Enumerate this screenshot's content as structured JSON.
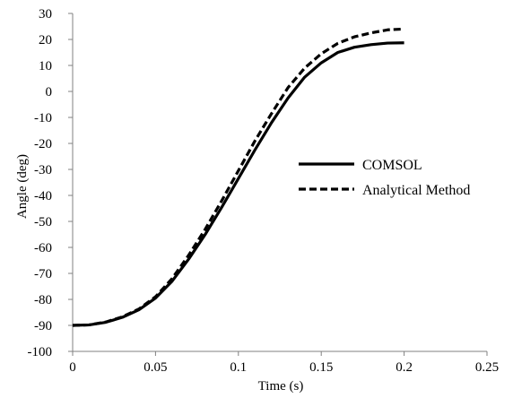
{
  "chart_data": {
    "type": "line",
    "title": "",
    "xlabel": "Time (s)",
    "ylabel": "Angle (deg)",
    "xlim": [
      0,
      0.25
    ],
    "ylim": [
      -100,
      30
    ],
    "x_ticks": [
      "0",
      "0.05",
      "0.1",
      "0.15",
      "0.2",
      "0.25"
    ],
    "y_ticks": [
      "30",
      "20",
      "10",
      "0",
      "-10",
      "-20",
      "-30",
      "-40",
      "-50",
      "-60",
      "-70",
      "-80",
      "-90",
      "-100"
    ],
    "grid": false,
    "legend_position": "right",
    "series": [
      {
        "name": "COMSOL",
        "style": "solid",
        "color": "#000000",
        "x": [
          0,
          0.01,
          0.02,
          0.03,
          0.04,
          0.05,
          0.06,
          0.07,
          0.08,
          0.09,
          0.1,
          0.11,
          0.12,
          0.13,
          0.14,
          0.15,
          0.16,
          0.17,
          0.18,
          0.19,
          0.2
        ],
        "y": [
          -90,
          -89.8,
          -88.8,
          -86.9,
          -84.0,
          -79.5,
          -73.0,
          -64.5,
          -55.0,
          -44.5,
          -33.5,
          -22.5,
          -12.0,
          -2.5,
          5.5,
          11.0,
          15.0,
          17.0,
          18.0,
          18.6,
          18.7
        ]
      },
      {
        "name": "Analytical Method",
        "style": "dashed",
        "color": "#000000",
        "x": [
          0,
          0.01,
          0.02,
          0.03,
          0.04,
          0.05,
          0.06,
          0.07,
          0.08,
          0.09,
          0.1,
          0.11,
          0.12,
          0.13,
          0.14,
          0.15,
          0.16,
          0.17,
          0.18,
          0.19,
          0.2
        ],
        "y": [
          -90,
          -89.8,
          -88.7,
          -86.7,
          -83.7,
          -79.0,
          -72.0,
          -63.0,
          -53.0,
          -42.0,
          -30.5,
          -19.0,
          -8.5,
          1.5,
          9.0,
          14.5,
          18.5,
          21.0,
          22.5,
          23.7,
          24.0
        ]
      }
    ]
  }
}
